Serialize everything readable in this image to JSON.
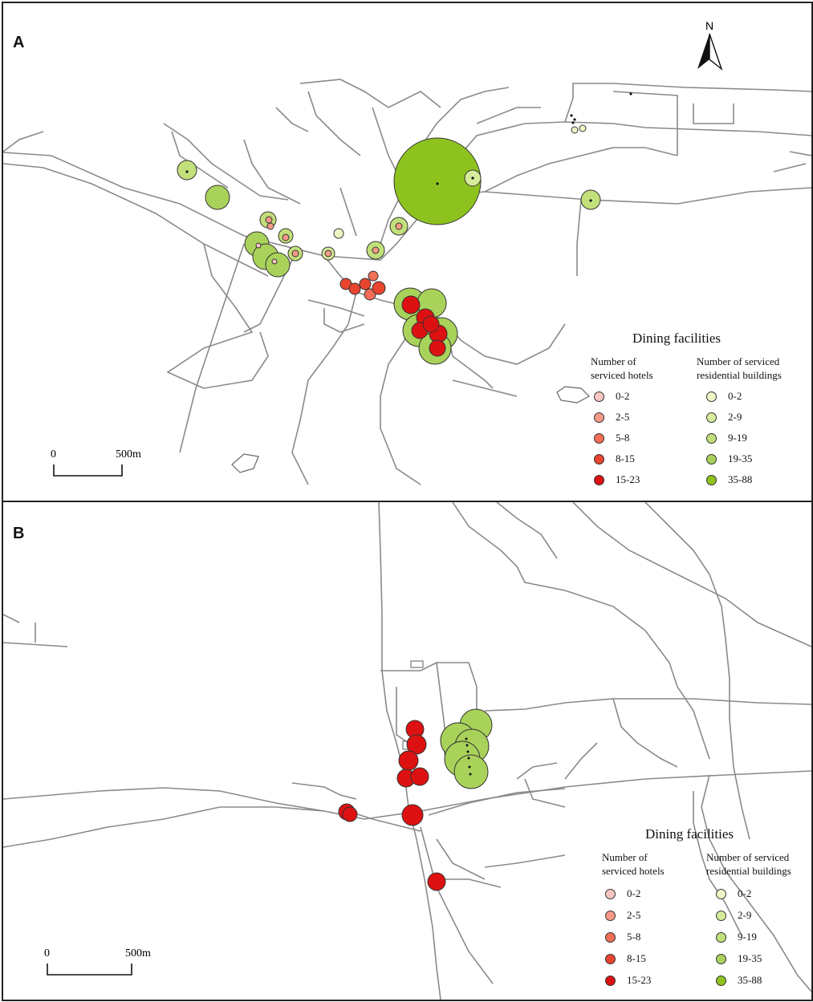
{
  "panels": [
    {
      "letter": "A",
      "north_label": "N",
      "scale": {
        "zero": "0",
        "end": "500m"
      },
      "legend": {
        "title": "Dining facilities",
        "hotels_header": "Number of\nserviced hotels",
        "residential_header": "Number of serviced\nresidential buildings",
        "hotel_classes": [
          "0-2",
          "2-5",
          "5-8",
          "8-15",
          "15-23"
        ],
        "residential_classes": [
          "0-2",
          "2-9",
          "9-19",
          "19-35",
          "35-88"
        ]
      }
    },
    {
      "letter": "B",
      "scale": {
        "zero": "0",
        "end": "500m"
      },
      "legend": {
        "title": "Dining facilities",
        "hotels_header": "Number of\nserviced hotels",
        "residential_header": "Number of serviced\nresidential buildings",
        "hotel_classes": [
          "0-2",
          "2-5",
          "5-8",
          "8-15",
          "15-23"
        ],
        "residential_classes": [
          "0-2",
          "2-9",
          "9-19",
          "19-35",
          "35-88"
        ]
      }
    }
  ],
  "colors": {
    "hotel_classes": [
      "#f9c6c2",
      "#f59a86",
      "#f26e55",
      "#e8452f",
      "#dd1111"
    ],
    "residential_classes": [
      "#eef6c6",
      "#d7ec9a",
      "#c2e07a",
      "#a9d25a",
      "#8ec31f"
    ],
    "road": "#8a8a8a"
  },
  "icons": [
    "north-arrow-icon"
  ]
}
